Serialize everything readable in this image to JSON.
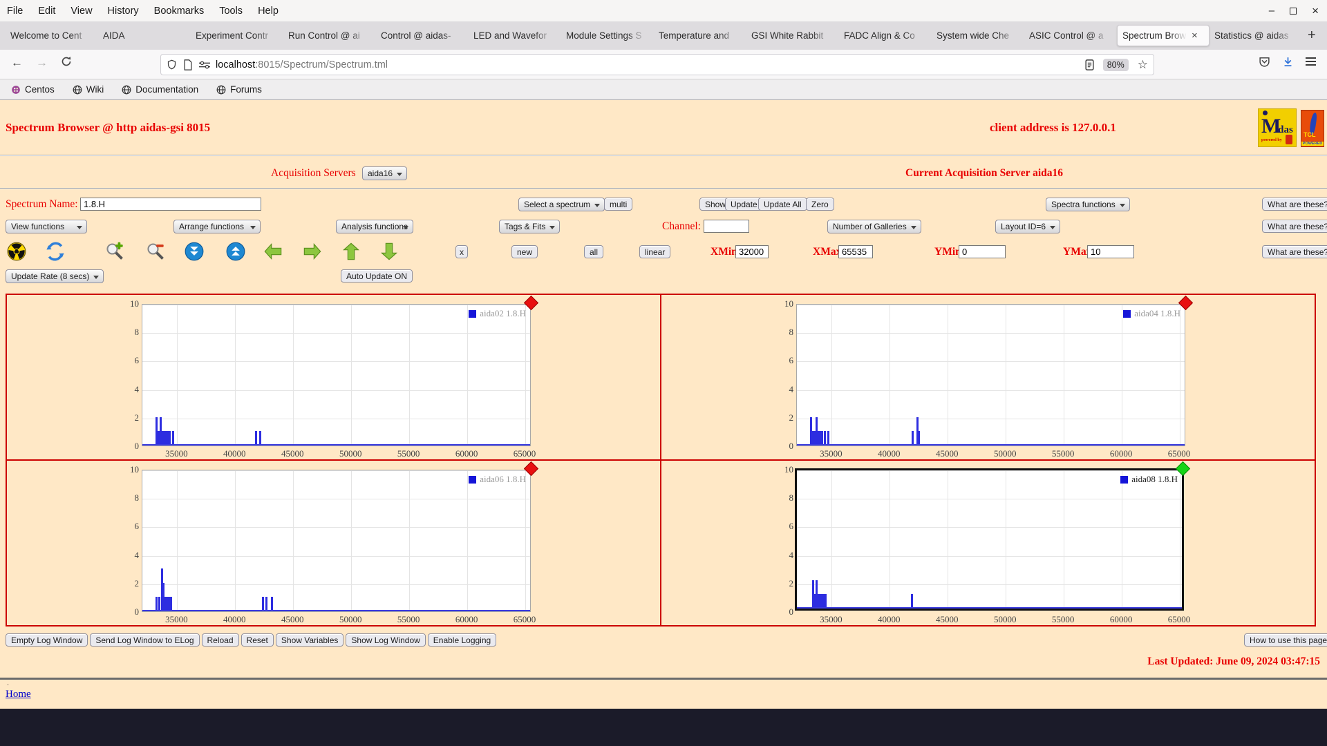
{
  "browser": {
    "menus": [
      "File",
      "Edit",
      "View",
      "History",
      "Bookmarks",
      "Tools",
      "Help"
    ],
    "tabs": [
      {
        "label": "Welcome to Cent",
        "active": false
      },
      {
        "label": "AIDA",
        "active": false
      },
      {
        "label": "Experiment Contr",
        "active": false
      },
      {
        "label": "Run Control @ ai",
        "active": false
      },
      {
        "label": "Control @ aidas-",
        "active": false
      },
      {
        "label": "LED and Wavefor",
        "active": false
      },
      {
        "label": "Module Settings S",
        "active": false
      },
      {
        "label": "Temperature and",
        "active": false
      },
      {
        "label": "GSI White Rabbit",
        "active": false
      },
      {
        "label": "FADC Align & Co",
        "active": false
      },
      {
        "label": "System wide Che",
        "active": false
      },
      {
        "label": "ASIC Control @ a",
        "active": false
      },
      {
        "label": "Spectrum Brow",
        "active": true
      },
      {
        "label": "Statistics @ aidas",
        "active": false
      }
    ],
    "new_tab": "+",
    "tab_close": "×",
    "urlbar": {
      "host": "localhost",
      "path": ":8015/Spectrum/Spectrum.tml",
      "zoom_badge": "80%"
    },
    "bookmarks": [
      "Centos",
      "Wiki",
      "Documentation",
      "Forums"
    ],
    "window_controls": {
      "minimize": "–",
      "close": "×"
    }
  },
  "page": {
    "title": "Spectrum Browser @ http aidas-gsi 8015",
    "client_address": "client address is 127.0.0.1",
    "logos": {
      "midas_m": "M",
      "midas_rest": "idas",
      "midas_sub": "powered by",
      "tcl": "TCL",
      "tcl_sub": "POWERED"
    },
    "acq_servers_label": "Acquisition Servers",
    "acq_server_value": "aida16",
    "current_server": "Current Acquisition Server aida16",
    "spectrum_name_label": "Spectrum Name:",
    "select_spectrum": "Select a spectrum",
    "multi": "multi",
    "show": "Show",
    "update": "Update",
    "update_all": "Update All",
    "zero": "Zero",
    "spectra_functions": "Spectra functions",
    "what_are_these": "What are these?",
    "view_functions": "View functions",
    "arrange_functions": "Arrange functions",
    "analysis_functions": "Analysis functions",
    "tags_fits": "Tags & Fits",
    "channel_label": "Channel:",
    "number_of_galleries": "Number of Galleries",
    "layout_id": "Layout ID=6",
    "toolbar": {
      "x": "x",
      "new": "new",
      "all": "all",
      "linear": "linear"
    },
    "axis_labels": {
      "xmin": "XMin",
      "xmax": "XMax",
      "ymin": "YMin",
      "ymax": "YMax"
    },
    "fields": {
      "spectrum_name": "1.8.H",
      "channel": "",
      "xmin": "32000",
      "xmax": "65535",
      "ymin": "0",
      "ymax": "10"
    },
    "update_rate": "Update Rate (8 secs)",
    "auto_update": "Auto Update ON",
    "footer_buttons": [
      "Empty Log Window",
      "Send Log Window to ELog",
      "Reload",
      "Reset",
      "Show Variables",
      "Show Log Window",
      "Enable Logging"
    ],
    "how_to": "How to use this page",
    "last_updated": "Last Updated: June 09, 2024 03:47:15",
    "footer_dot": ".",
    "home": "Home"
  },
  "colors": {
    "page_bg": "#ffe8c6",
    "accent_red": "#e80000",
    "grid_border_red": "#cc0000",
    "bar_blue": "#2d2de0",
    "legend_blue": "#1515d8",
    "indicator_red": "#e81010",
    "indicator_green": "#17d417",
    "link_blue": "#0000cc"
  },
  "chart_data": {
    "type": "bar",
    "title": "",
    "xlabel": "",
    "ylabel": "",
    "grid": true,
    "legend_position": "top-right",
    "axes": {
      "xlim": [
        32000,
        65535
      ],
      "ylim": [
        0,
        10
      ],
      "xticks": [
        35000,
        40000,
        45000,
        50000,
        55000,
        60000,
        65000
      ],
      "yticks": [
        0,
        2,
        4,
        6,
        8,
        10
      ]
    },
    "charts": [
      {
        "server": "aida02",
        "name": "aida02 1.8.H",
        "indicator": "red",
        "selected": false,
        "bars": [
          [
            33150,
            2
          ],
          [
            33300,
            1
          ],
          [
            33500,
            2
          ],
          [
            33650,
            1
          ],
          [
            33800,
            1
          ],
          [
            33900,
            1
          ],
          [
            34000,
            1
          ],
          [
            34100,
            1
          ],
          [
            34250,
            1
          ],
          [
            34550,
            1
          ],
          [
            41700,
            1
          ],
          [
            42050,
            1
          ]
        ]
      },
      {
        "server": "aida04",
        "name": "aida04 1.8.H",
        "indicator": "red",
        "selected": false,
        "bars": [
          [
            33150,
            2
          ],
          [
            33300,
            1
          ],
          [
            33450,
            1
          ],
          [
            33600,
            2
          ],
          [
            33750,
            1
          ],
          [
            33900,
            1
          ],
          [
            34100,
            1
          ],
          [
            34300,
            1
          ],
          [
            34600,
            1
          ],
          [
            41900,
            1
          ],
          [
            42300,
            2
          ],
          [
            42450,
            1
          ]
        ]
      },
      {
        "server": "aida06",
        "name": "aida06 1.8.H",
        "indicator": "red",
        "selected": false,
        "bars": [
          [
            33100,
            1
          ],
          [
            33350,
            1
          ],
          [
            33600,
            3
          ],
          [
            33750,
            2
          ],
          [
            33900,
            1
          ],
          [
            34050,
            1
          ],
          [
            34200,
            1
          ],
          [
            34350,
            1
          ],
          [
            42300,
            1
          ],
          [
            42600,
            1
          ],
          [
            43100,
            1
          ]
        ]
      },
      {
        "server": "aida08",
        "name": "aida08 1.8.H",
        "indicator": "green",
        "selected": true,
        "bars": [
          [
            33300,
            2
          ],
          [
            33450,
            1
          ],
          [
            33600,
            2
          ],
          [
            33750,
            1
          ],
          [
            33900,
            1
          ],
          [
            34050,
            1
          ],
          [
            34200,
            1
          ],
          [
            34350,
            1
          ],
          [
            41800,
            1
          ]
        ]
      }
    ]
  }
}
